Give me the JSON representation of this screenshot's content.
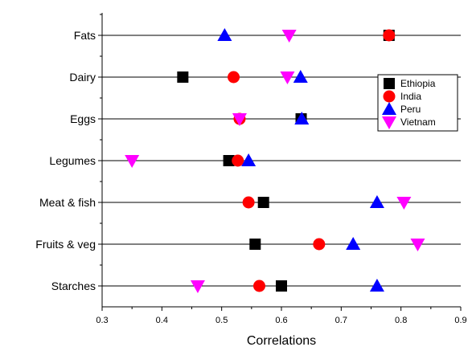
{
  "chart_data": {
    "type": "scatter",
    "xlabel": "Correlations",
    "xlim": [
      0.3,
      0.9
    ],
    "xticks": [
      "0.3",
      "0.4",
      "0.5",
      "0.6",
      "0.7",
      "0.8",
      "0.9"
    ],
    "categories": [
      "Fats",
      "Dairy",
      "Eggs",
      "Legumes",
      "Meat & fish",
      "Fruits & veg",
      "Starches"
    ],
    "legend_position": "right-upper-inside",
    "grid": "horizontal lines at each category",
    "series": [
      {
        "name": "Ethiopia",
        "marker": "square",
        "color": "#000000",
        "values": [
          0.78,
          0.435,
          0.633,
          0.512,
          0.57,
          0.556,
          0.6
        ]
      },
      {
        "name": "India",
        "marker": "circle",
        "color": "#ff0000",
        "values": [
          0.78,
          0.52,
          0.53,
          0.527,
          0.545,
          0.663,
          0.563
        ]
      },
      {
        "name": "Peru",
        "marker": "triangle-up",
        "color": "#0000ff",
        "values": [
          0.505,
          0.632,
          0.634,
          0.545,
          0.76,
          0.72,
          0.76
        ]
      },
      {
        "name": "Vietnam",
        "marker": "triangle-down",
        "color": "#ff00ff",
        "values": [
          0.613,
          0.61,
          0.53,
          0.35,
          0.805,
          0.828,
          0.46
        ]
      }
    ]
  }
}
